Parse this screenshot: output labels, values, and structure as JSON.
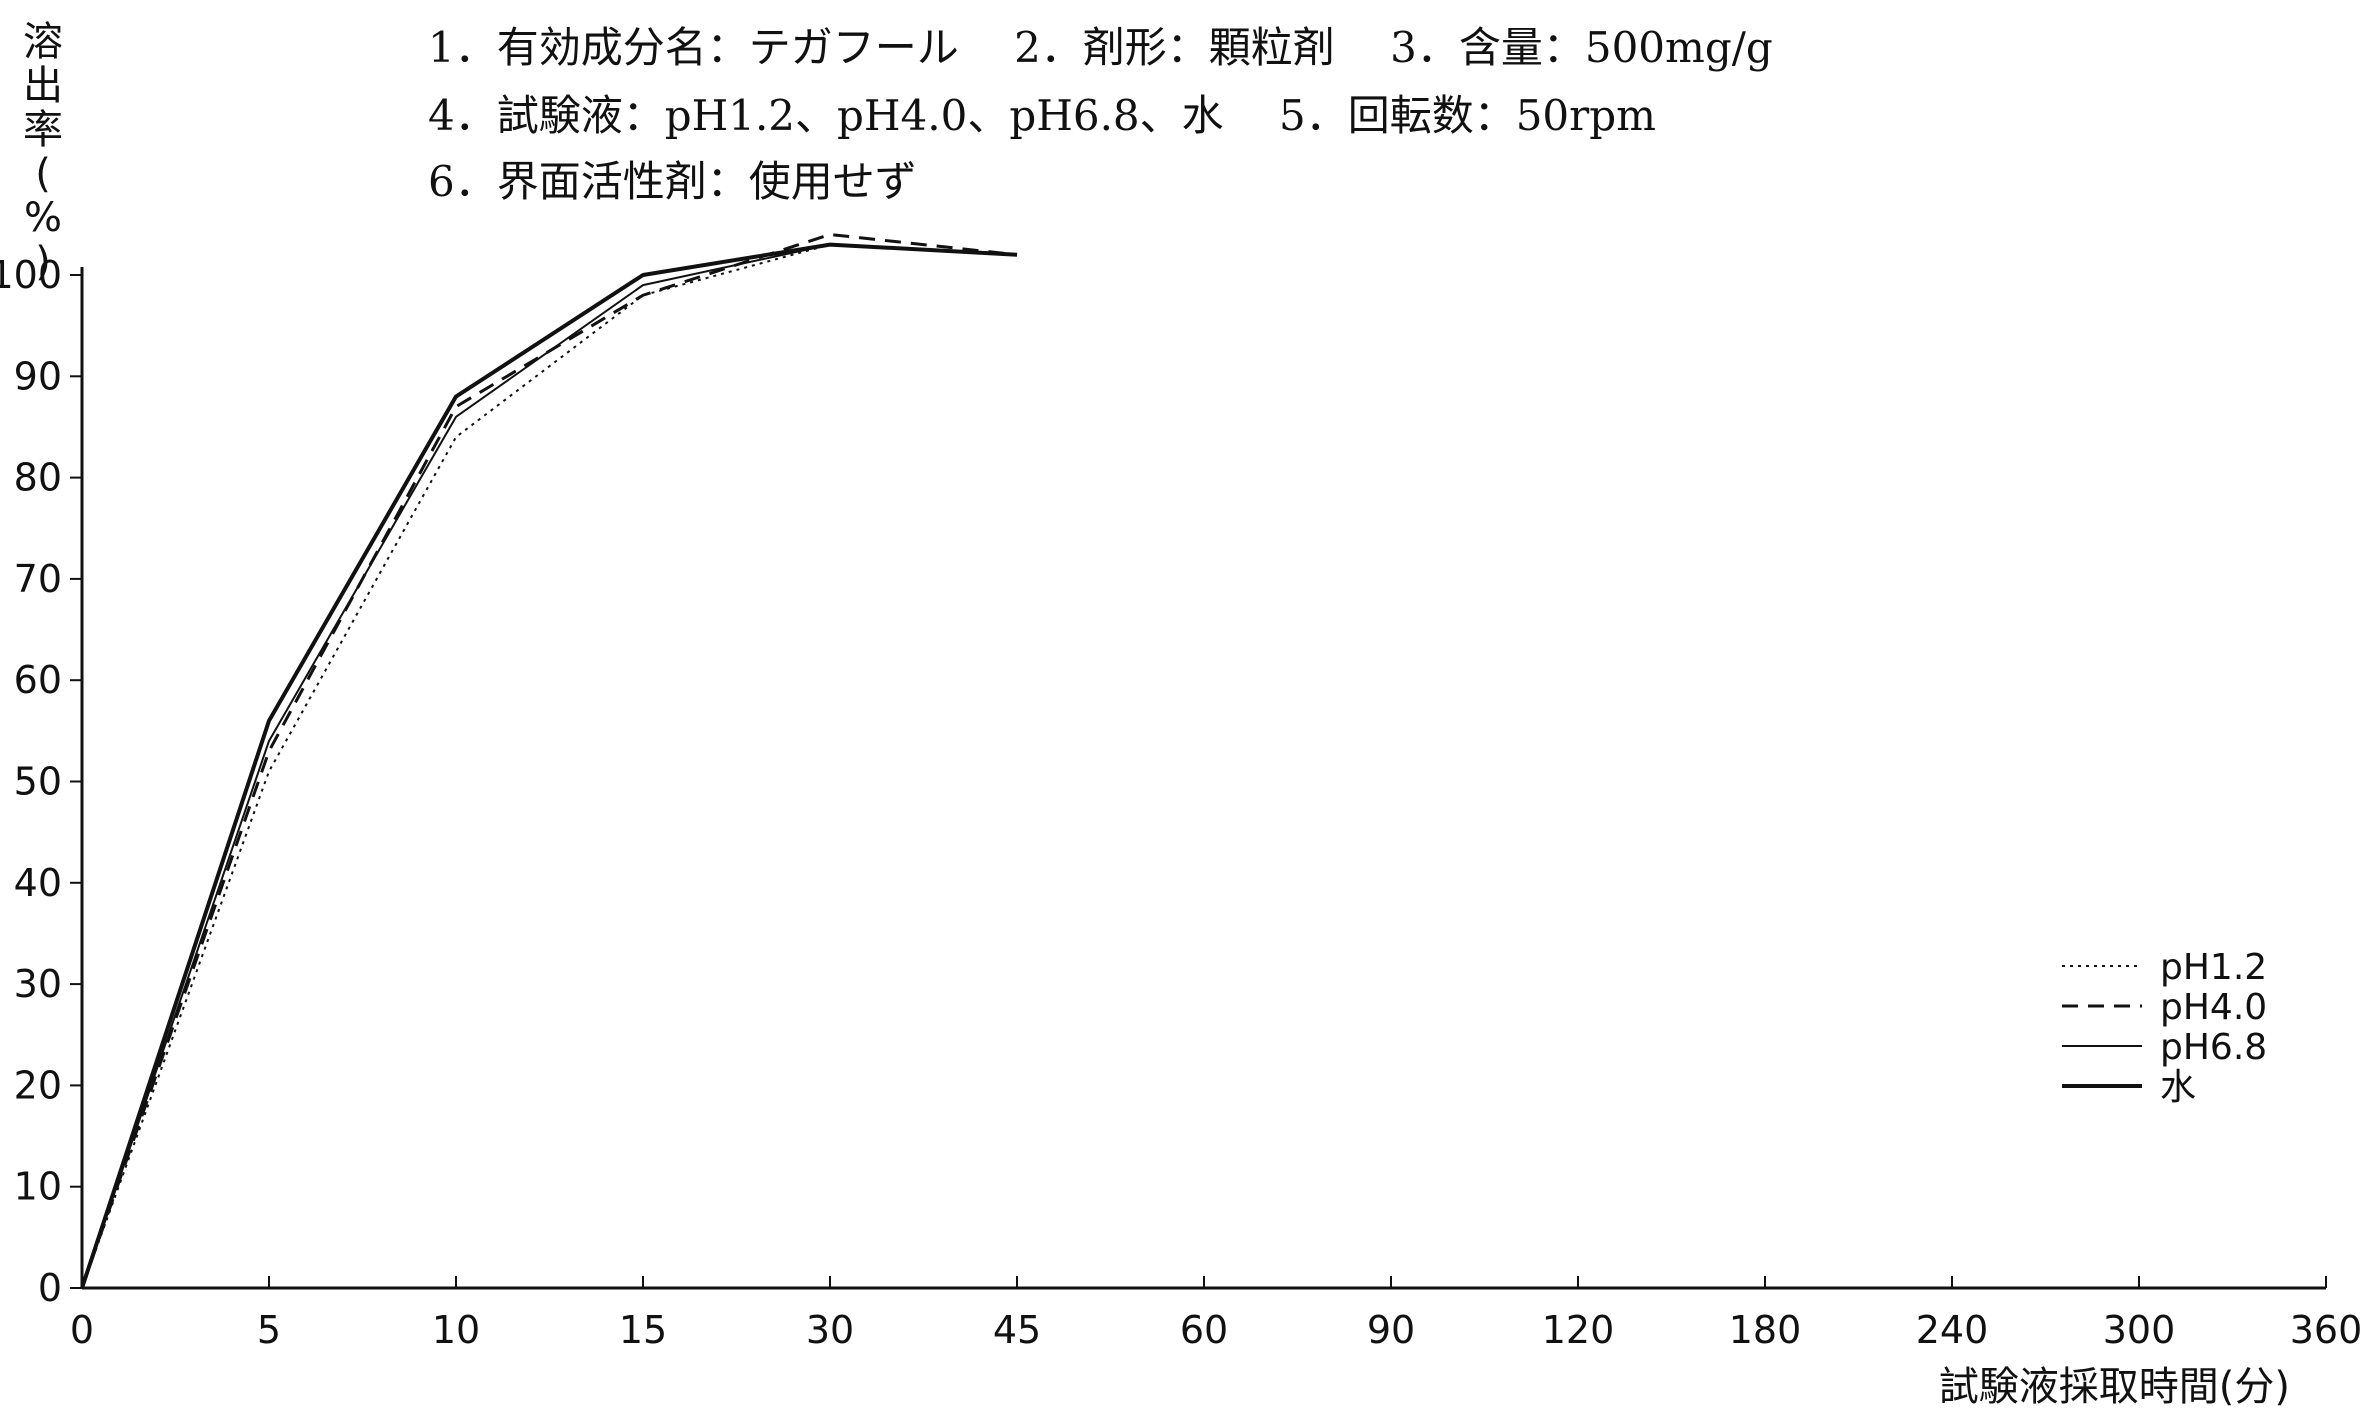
{
  "header": {
    "line1": "1．有効成分名：テガフール　 2．剤形：顆粒剤　 3．含量：500mg/g",
    "line2": "4．試験液：pH1.2、pH4.0、pH6.8、水　 5．回転数：50rpm",
    "line3": "6．界面活性剤：使用せず"
  },
  "chart_data": {
    "type": "line",
    "title": "",
    "xlabel": "試験液採取時間(分)",
    "ylabel": "溶出率(%)",
    "ylim": [
      0,
      100
    ],
    "x_categories": [
      "0",
      "5",
      "10",
      "15",
      "30",
      "45",
      "60",
      "90",
      "120",
      "180",
      "240",
      "300",
      "360"
    ],
    "y_ticks": [
      "0",
      "10",
      "20",
      "30",
      "40",
      "50",
      "60",
      "70",
      "80",
      "90",
      "100"
    ],
    "grid": false,
    "legend_position": "bottom-right",
    "series": [
      {
        "name": "pH1.2",
        "style": "dotted",
        "x": [
          "0",
          "5",
          "10",
          "15",
          "30",
          "45"
        ],
        "values": [
          0,
          51,
          84,
          98,
          103,
          102
        ]
      },
      {
        "name": "pH4.0",
        "style": "dashed",
        "x": [
          "0",
          "5",
          "10",
          "15",
          "30",
          "45"
        ],
        "values": [
          0,
          53,
          87,
          98,
          104,
          102
        ]
      },
      {
        "name": "pH6.8",
        "style": "solid-thin",
        "x": [
          "0",
          "5",
          "10",
          "15",
          "30",
          "45"
        ],
        "values": [
          0,
          54,
          86,
          99,
          103,
          102
        ]
      },
      {
        "name": "水",
        "style": "solid-thick",
        "x": [
          "0",
          "5",
          "10",
          "15",
          "30",
          "45"
        ],
        "values": [
          0,
          56,
          88,
          100,
          103,
          102
        ]
      }
    ]
  }
}
